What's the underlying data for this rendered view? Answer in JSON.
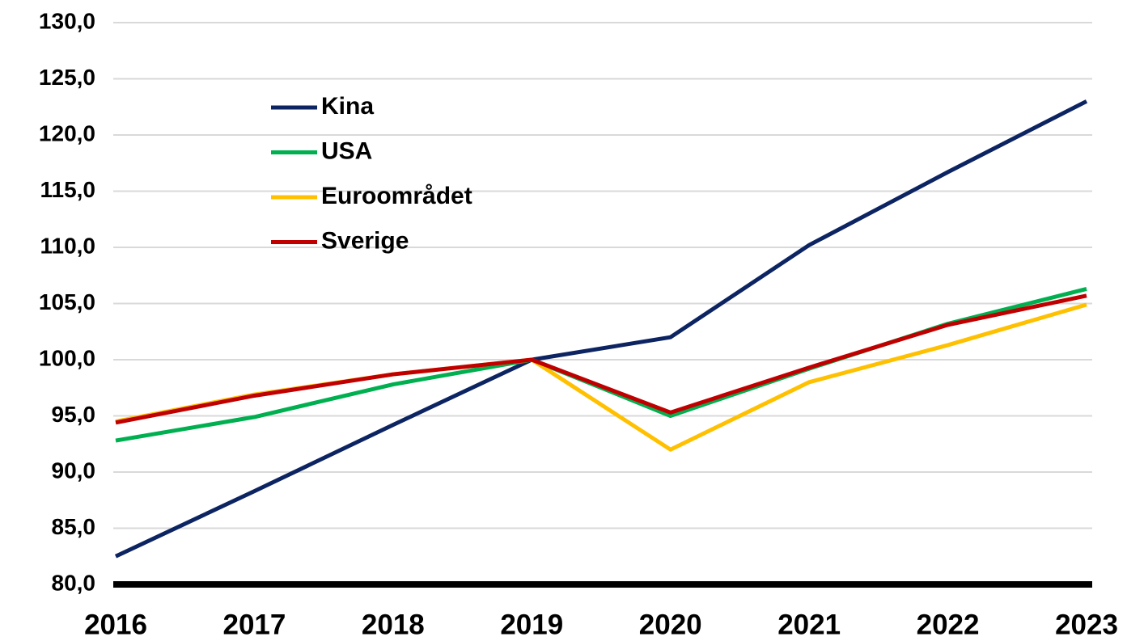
{
  "chart_data": {
    "type": "line",
    "categories": [
      "2016",
      "2017",
      "2018",
      "2019",
      "2020",
      "2021",
      "2022",
      "2023"
    ],
    "series": [
      {
        "name": "Kina",
        "color": "#0c2461",
        "values": [
          82.5,
          88.3,
          94.2,
          100.0,
          102.0,
          110.2,
          116.7,
          123.0
        ]
      },
      {
        "name": "USA",
        "color": "#00b050",
        "values": [
          92.8,
          94.9,
          97.8,
          100.0,
          95.0,
          99.2,
          103.2,
          106.3
        ]
      },
      {
        "name": "Euroområdet",
        "color": "#ffc000",
        "values": [
          94.5,
          96.9,
          98.7,
          100.0,
          92.0,
          98.0,
          101.3,
          104.9
        ]
      },
      {
        "name": "Sverige",
        "color": "#c00000",
        "values": [
          94.4,
          96.8,
          98.7,
          100.0,
          95.3,
          99.3,
          103.1,
          105.7
        ]
      }
    ],
    "ylim": [
      80,
      130
    ],
    "yticks": [
      {
        "value": 80,
        "label": "80,0"
      },
      {
        "value": 85,
        "label": "85,0"
      },
      {
        "value": 90,
        "label": "90,0"
      },
      {
        "value": 95,
        "label": "95,0"
      },
      {
        "value": 100,
        "label": "100,0"
      },
      {
        "value": 105,
        "label": "105,0"
      },
      {
        "value": 110,
        "label": "110,0"
      },
      {
        "value": 115,
        "label": "115,0"
      },
      {
        "value": 120,
        "label": "120,0"
      },
      {
        "value": 125,
        "label": "125,0"
      },
      {
        "value": 130,
        "label": "130,0"
      }
    ],
    "grid": true,
    "legend": "upper-left"
  }
}
